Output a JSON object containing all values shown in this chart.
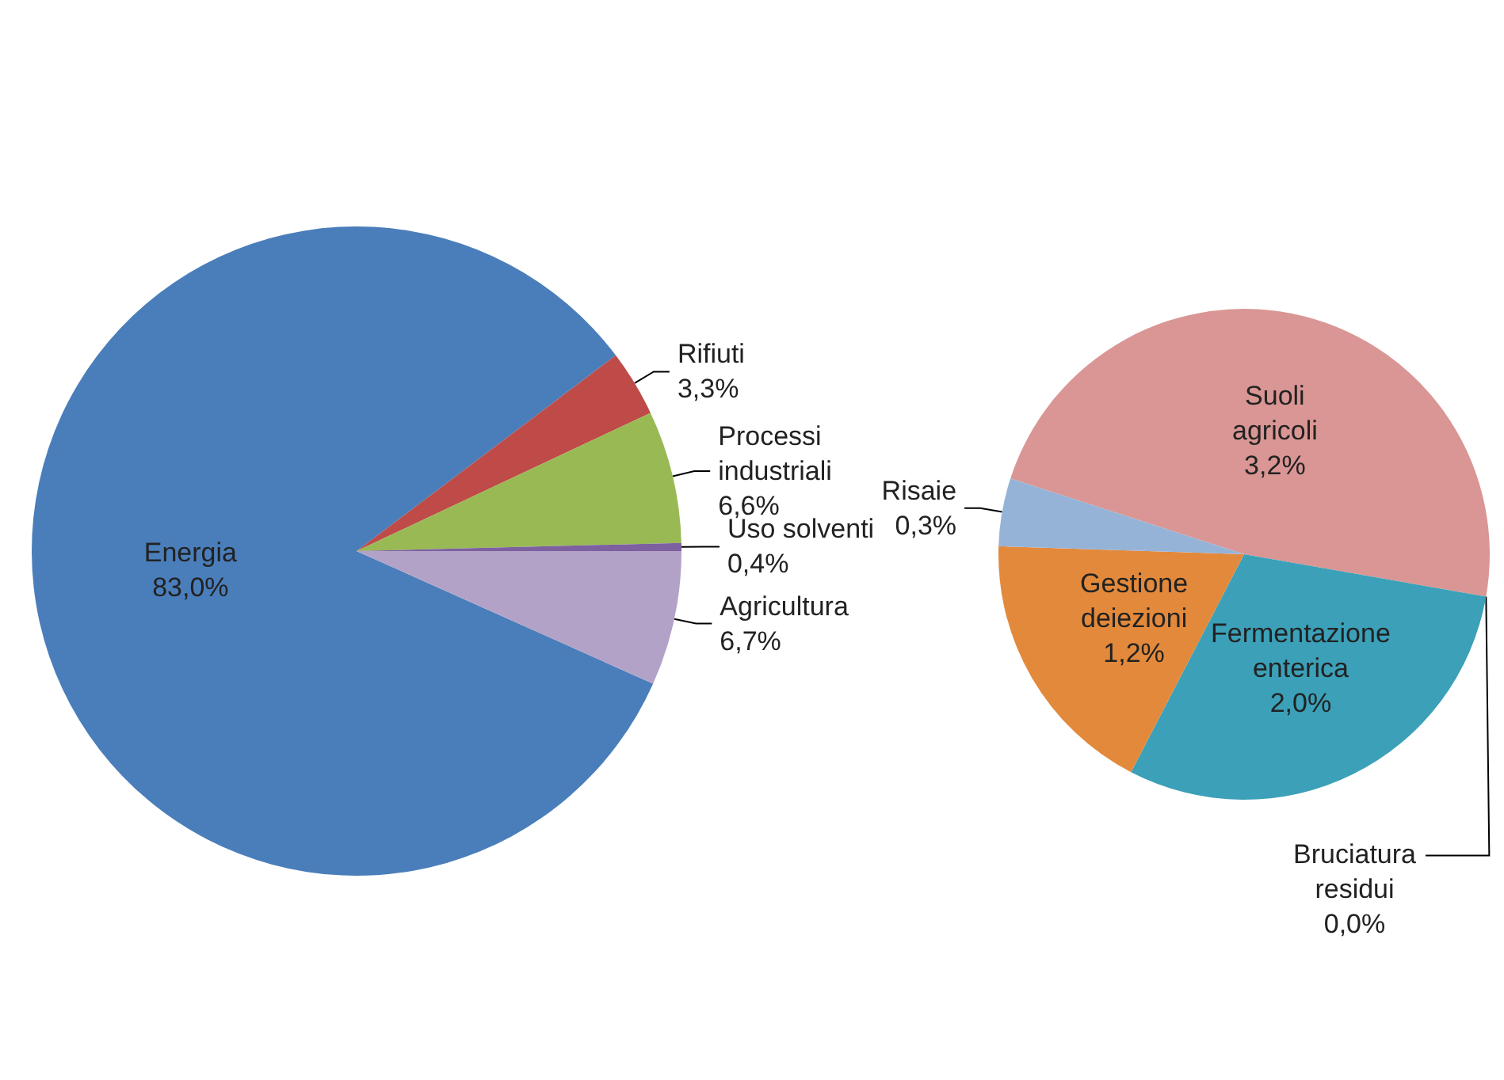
{
  "chart_data": [
    {
      "type": "pie",
      "categories": [
        "Energia",
        "Rifiuti",
        "Processi industriali",
        "Uso solventi",
        "Agricultura"
      ],
      "values": [
        83.0,
        3.3,
        6.6,
        0.4,
        6.7
      ],
      "value_labels": [
        "83,0%",
        "3,3%",
        "6,6%",
        "0,4%",
        "6,7%"
      ],
      "colors": [
        "#4a7ebb",
        "#be4b48",
        "#98b954",
        "#7d60a0",
        "#b3a2c7"
      ]
    },
    {
      "type": "pie",
      "categories": [
        "Suoli agricoli",
        "Bruciatura residui",
        "Fermentazione enterica",
        "Gestione deiezioni",
        "Risaie"
      ],
      "values": [
        3.2,
        0.0,
        2.0,
        1.2,
        0.3
      ],
      "value_labels": [
        "3,2%",
        "0,0%",
        "2,0%",
        "1,2%",
        "0,3%"
      ],
      "colors": [
        "#d99694",
        "#8064a2",
        "#3ba0b8",
        "#e3893b",
        "#95b3d7"
      ]
    }
  ]
}
